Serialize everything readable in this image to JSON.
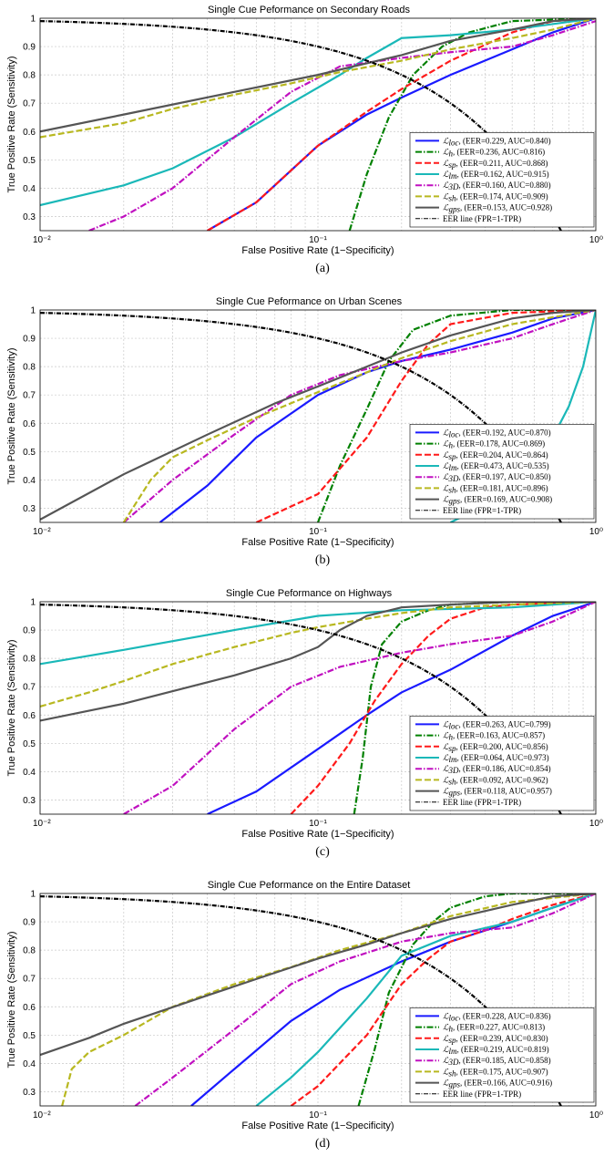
{
  "chart_data": [
    {
      "type": "line",
      "title": "Single Cue Peformance on Secondary Roads",
      "xlabel": "False Positive Rate (1−Specificity)",
      "ylabel": "True Positive Rate (Sensitivity)",
      "xscale": "log",
      "xlim": [
        0.01,
        1
      ],
      "ylim": [
        0.25,
        1
      ],
      "xticks": [
        "10⁻²",
        "10⁻¹",
        "10⁰"
      ],
      "yticks": [
        "0.3",
        "0.4",
        "0.5",
        "0.6",
        "0.7",
        "0.8",
        "0.9",
        "1"
      ],
      "caption": "(a)",
      "grid": true,
      "legend_position": "bottom-right",
      "series": [
        {
          "name": "ℒ_loc",
          "stats": "(EER=0.229, AUC=0.840)",
          "color": "#1a1aff",
          "dash": "solid",
          "x": [
            0.04,
            0.06,
            0.1,
            0.15,
            0.2,
            0.3,
            0.5,
            0.7,
            1.0
          ],
          "y": [
            0.25,
            0.35,
            0.55,
            0.66,
            0.72,
            0.8,
            0.89,
            0.95,
            1.0
          ]
        },
        {
          "name": "ℒ_h",
          "stats": "(EER=0.236, AUC=0.816)",
          "color": "#008000",
          "dash": "dashdot",
          "x": [
            0.13,
            0.15,
            0.18,
            0.22,
            0.28,
            0.35,
            0.5,
            1.0
          ],
          "y": [
            0.25,
            0.45,
            0.65,
            0.8,
            0.9,
            0.95,
            0.99,
            1.0
          ]
        },
        {
          "name": "ℒ_sp",
          "stats": "(EER=0.211, AUC=0.868)",
          "color": "#ff1a1a",
          "dash": "dash",
          "x": [
            0.04,
            0.06,
            0.1,
            0.15,
            0.2,
            0.3,
            0.5,
            0.7,
            1.0
          ],
          "y": [
            0.25,
            0.35,
            0.55,
            0.67,
            0.75,
            0.85,
            0.95,
            0.99,
            1.0
          ]
        },
        {
          "name": "ℒ_lm",
          "stats": "(EER=0.162, AUC=0.915)",
          "color": "#1ab8b8",
          "dash": "solid",
          "x": [
            0.01,
            0.02,
            0.03,
            0.05,
            0.08,
            0.12,
            0.15,
            0.2,
            0.3,
            0.5,
            1.0
          ],
          "y": [
            0.34,
            0.41,
            0.47,
            0.58,
            0.7,
            0.8,
            0.86,
            0.93,
            0.94,
            0.96,
            1.0
          ]
        },
        {
          "name": "ℒ_3D",
          "stats": "(EER=0.160, AUC=0.880)",
          "color": "#c010c0",
          "dash": "dashdot",
          "x": [
            0.015,
            0.02,
            0.03,
            0.05,
            0.08,
            0.12,
            0.2,
            0.3,
            0.5,
            0.7,
            1.0
          ],
          "y": [
            0.25,
            0.3,
            0.4,
            0.58,
            0.74,
            0.83,
            0.86,
            0.88,
            0.9,
            0.94,
            0.99
          ]
        },
        {
          "name": "ℒ_sh",
          "stats": "(EER=0.174, AUC=0.909)",
          "color": "#b8b820",
          "dash": "dash",
          "x": [
            0.01,
            0.02,
            0.03,
            0.05,
            0.08,
            0.12,
            0.2,
            0.3,
            0.5,
            0.7,
            1.0
          ],
          "y": [
            0.58,
            0.63,
            0.68,
            0.73,
            0.77,
            0.81,
            0.85,
            0.89,
            0.93,
            0.96,
            1.0
          ]
        },
        {
          "name": "ℒ_gps",
          "stats": "(EER=0.153, AUC=0.928)",
          "color": "#555555",
          "dash": "solid",
          "x": [
            0.01,
            0.02,
            0.05,
            0.1,
            0.2,
            0.3,
            0.5,
            0.7,
            1.0
          ],
          "y": [
            0.6,
            0.66,
            0.74,
            0.8,
            0.87,
            0.92,
            0.96,
            0.99,
            1.0
          ]
        },
        {
          "name": "EER line (FPR=1-TPR)",
          "stats": "",
          "color": "#000000",
          "dash": "eer",
          "x": [
            0.01,
            1.0
          ],
          "y": [
            0.99,
            0.25
          ]
        }
      ]
    },
    {
      "type": "line",
      "title": "Single Cue Peformance on Urban Scenes",
      "xlabel": "False Positive Rate (1−Specificity)",
      "ylabel": "True Positive Rate (Sensitivity)",
      "xscale": "log",
      "xlim": [
        0.01,
        1
      ],
      "ylim": [
        0.25,
        1
      ],
      "xticks": [
        "10⁻²",
        "10⁻¹",
        "10⁰"
      ],
      "yticks": [
        "0.3",
        "0.4",
        "0.5",
        "0.6",
        "0.7",
        "0.8",
        "0.9",
        "1"
      ],
      "caption": "(b)",
      "grid": true,
      "legend_position": "bottom-right",
      "series": [
        {
          "name": "ℒ_loc",
          "stats": "(EER=0.192, AUC=0.870)",
          "color": "#1a1aff",
          "dash": "solid",
          "x": [
            0.027,
            0.04,
            0.06,
            0.1,
            0.15,
            0.2,
            0.3,
            0.5,
            0.7,
            1.0
          ],
          "y": [
            0.25,
            0.38,
            0.55,
            0.7,
            0.78,
            0.82,
            0.86,
            0.92,
            0.97,
            1.0
          ]
        },
        {
          "name": "ℒ_h",
          "stats": "(EER=0.178, AUC=0.869)",
          "color": "#008000",
          "dash": "dashdot",
          "x": [
            0.1,
            0.12,
            0.15,
            0.18,
            0.22,
            0.3,
            0.5,
            1.0
          ],
          "y": [
            0.25,
            0.45,
            0.65,
            0.82,
            0.93,
            0.98,
            1.0,
            1.0
          ]
        },
        {
          "name": "ℒ_sp",
          "stats": "(EER=0.204, AUC=0.864)",
          "color": "#ff1a1a",
          "dash": "dash",
          "x": [
            0.06,
            0.1,
            0.15,
            0.2,
            0.25,
            0.3,
            0.5,
            1.0
          ],
          "y": [
            0.25,
            0.35,
            0.55,
            0.75,
            0.88,
            0.95,
            0.99,
            1.0
          ]
        },
        {
          "name": "ℒ_lm",
          "stats": "(EER=0.473, AUC=0.535)",
          "color": "#1ab8b8",
          "dash": "solid",
          "x": [
            0.3,
            0.4,
            0.5,
            0.6,
            0.7,
            0.8,
            0.9,
            1.0
          ],
          "y": [
            0.25,
            0.31,
            0.38,
            0.46,
            0.55,
            0.66,
            0.8,
            1.0
          ]
        },
        {
          "name": "ℒ_3D",
          "stats": "(EER=0.197, AUC=0.850)",
          "color": "#c010c0",
          "dash": "dashdot",
          "x": [
            0.02,
            0.03,
            0.05,
            0.08,
            0.12,
            0.2,
            0.3,
            0.5,
            0.7,
            1.0
          ],
          "y": [
            0.25,
            0.4,
            0.56,
            0.7,
            0.77,
            0.82,
            0.85,
            0.9,
            0.95,
            1.0
          ]
        },
        {
          "name": "ℒ_sh",
          "stats": "(EER=0.181, AUC=0.896)",
          "color": "#b8b820",
          "dash": "dash",
          "x": [
            0.02,
            0.025,
            0.03,
            0.04,
            0.06,
            0.1,
            0.15,
            0.2,
            0.3,
            0.5,
            1.0
          ],
          "y": [
            0.25,
            0.4,
            0.48,
            0.54,
            0.62,
            0.71,
            0.78,
            0.83,
            0.89,
            0.95,
            1.0
          ]
        },
        {
          "name": "ℒ_gps",
          "stats": "(EER=0.169, AUC=0.908)",
          "color": "#555555",
          "dash": "solid",
          "x": [
            0.01,
            0.02,
            0.04,
            0.07,
            0.1,
            0.15,
            0.2,
            0.3,
            0.5,
            0.7,
            1.0
          ],
          "y": [
            0.26,
            0.42,
            0.56,
            0.67,
            0.73,
            0.8,
            0.85,
            0.91,
            0.97,
            0.99,
            1.0
          ]
        },
        {
          "name": "EER line (FPR=1-TPR)",
          "stats": "",
          "color": "#000000",
          "dash": "eer",
          "x": [
            0.01,
            1.0
          ],
          "y": [
            0.99,
            0.25
          ]
        }
      ]
    },
    {
      "type": "line",
      "title": "Single Cue Peformance on Highways",
      "xlabel": "False Positive Rate (1−Specificity)",
      "ylabel": "True Positive Rate (Sensitivity)",
      "xscale": "log",
      "xlim": [
        0.01,
        1
      ],
      "ylim": [
        0.25,
        1
      ],
      "xticks": [
        "10⁻²",
        "10⁻¹",
        "10⁰"
      ],
      "yticks": [
        "0.3",
        "0.4",
        "0.5",
        "0.6",
        "0.7",
        "0.8",
        "0.9",
        "1"
      ],
      "caption": "(c)",
      "grid": true,
      "legend_position": "bottom-right",
      "series": [
        {
          "name": "ℒ_loc",
          "stats": "(EER=0.263, AUC=0.799)",
          "color": "#1a1aff",
          "dash": "solid",
          "x": [
            0.04,
            0.06,
            0.1,
            0.15,
            0.2,
            0.3,
            0.5,
            0.7,
            1.0
          ],
          "y": [
            0.25,
            0.33,
            0.48,
            0.6,
            0.68,
            0.76,
            0.88,
            0.95,
            1.0
          ]
        },
        {
          "name": "ℒ_h",
          "stats": "(EER=0.163, AUC=0.857)",
          "color": "#008000",
          "dash": "dashdot",
          "x": [
            0.135,
            0.145,
            0.155,
            0.17,
            0.2,
            0.25,
            0.3,
            0.5,
            1.0
          ],
          "y": [
            0.25,
            0.45,
            0.7,
            0.85,
            0.93,
            0.97,
            0.99,
            1.0,
            1.0
          ]
        },
        {
          "name": "ℒ_sp",
          "stats": "(EER=0.200, AUC=0.856)",
          "color": "#ff1a1a",
          "dash": "dash",
          "x": [
            0.08,
            0.1,
            0.13,
            0.16,
            0.2,
            0.25,
            0.3,
            0.4,
            0.5,
            1.0
          ],
          "y": [
            0.25,
            0.35,
            0.5,
            0.65,
            0.78,
            0.88,
            0.94,
            0.98,
            0.99,
            1.0
          ]
        },
        {
          "name": "ℒ_lm",
          "stats": "(EER=0.064, AUC=0.973)",
          "color": "#1ab8b8",
          "dash": "solid",
          "x": [
            0.01,
            0.02,
            0.05,
            0.1,
            0.2,
            0.5,
            1.0
          ],
          "y": [
            0.78,
            0.83,
            0.9,
            0.95,
            0.97,
            0.98,
            1.0
          ]
        },
        {
          "name": "ℒ_3D",
          "stats": "(EER=0.186, AUC=0.854)",
          "color": "#c010c0",
          "dash": "dashdot",
          "x": [
            0.02,
            0.03,
            0.05,
            0.08,
            0.12,
            0.2,
            0.3,
            0.5,
            0.7,
            1.0
          ],
          "y": [
            0.25,
            0.35,
            0.55,
            0.7,
            0.77,
            0.82,
            0.85,
            0.88,
            0.93,
            1.0
          ]
        },
        {
          "name": "ℒ_sh",
          "stats": "(EER=0.092, AUC=0.962)",
          "color": "#b8b820",
          "dash": "dash",
          "x": [
            0.01,
            0.015,
            0.02,
            0.03,
            0.05,
            0.08,
            0.1,
            0.15,
            0.2,
            0.3,
            0.5,
            1.0
          ],
          "y": [
            0.63,
            0.68,
            0.72,
            0.78,
            0.84,
            0.89,
            0.91,
            0.94,
            0.96,
            0.98,
            0.99,
            1.0
          ]
        },
        {
          "name": "ℒ_gps",
          "stats": "(EER=0.118, AUC=0.957)",
          "color": "#555555",
          "dash": "solid",
          "x": [
            0.01,
            0.02,
            0.05,
            0.08,
            0.1,
            0.12,
            0.15,
            0.2,
            0.3,
            0.5,
            1.0
          ],
          "y": [
            0.58,
            0.64,
            0.74,
            0.8,
            0.84,
            0.9,
            0.95,
            0.98,
            0.99,
            1.0,
            1.0
          ]
        },
        {
          "name": "EER line (FPR=1-TPR)",
          "stats": "",
          "color": "#000000",
          "dash": "eer",
          "x": [
            0.01,
            1.0
          ],
          "y": [
            0.99,
            0.25
          ]
        }
      ]
    },
    {
      "type": "line",
      "title": "Single Cue Peformance on the Entire Dataset",
      "xlabel": "False Positive Rate (1−Specificity)",
      "ylabel": "True Positive Rate (Sensitivity)",
      "xscale": "log",
      "xlim": [
        0.01,
        1
      ],
      "ylim": [
        0.25,
        1
      ],
      "xticks": [
        "10⁻²",
        "10⁻¹",
        "10⁰"
      ],
      "yticks": [
        "0.3",
        "0.4",
        "0.5",
        "0.6",
        "0.7",
        "0.8",
        "0.9",
        "1"
      ],
      "caption": "(d)",
      "grid": true,
      "legend_position": "bottom-right",
      "series": [
        {
          "name": "ℒ_loc",
          "stats": "(EER=0.228, AUC=0.836)",
          "color": "#1a1aff",
          "dash": "solid",
          "x": [
            0.035,
            0.05,
            0.08,
            0.12,
            0.2,
            0.3,
            0.5,
            0.7,
            1.0
          ],
          "y": [
            0.25,
            0.38,
            0.55,
            0.66,
            0.76,
            0.83,
            0.9,
            0.95,
            1.0
          ]
        },
        {
          "name": "ℒ_h",
          "stats": "(EER=0.227, AUC=0.813)",
          "color": "#008000",
          "dash": "dashdot",
          "x": [
            0.14,
            0.16,
            0.18,
            0.22,
            0.26,
            0.3,
            0.4,
            0.5,
            1.0
          ],
          "y": [
            0.25,
            0.45,
            0.65,
            0.82,
            0.9,
            0.95,
            0.99,
            1.0,
            1.0
          ]
        },
        {
          "name": "ℒ_sp",
          "stats": "(EER=0.239, AUC=0.830)",
          "color": "#ff1a1a",
          "dash": "dash",
          "x": [
            0.08,
            0.1,
            0.15,
            0.2,
            0.25,
            0.3,
            0.4,
            0.5,
            0.7,
            1.0
          ],
          "y": [
            0.25,
            0.32,
            0.5,
            0.68,
            0.77,
            0.83,
            0.87,
            0.91,
            0.96,
            1.0
          ]
        },
        {
          "name": "ℒ_lm",
          "stats": "(EER=0.219, AUC=0.819)",
          "color": "#1ab8b8",
          "dash": "solid",
          "x": [
            0.06,
            0.08,
            0.1,
            0.15,
            0.2,
            0.3,
            0.5,
            0.7,
            1.0
          ],
          "y": [
            0.25,
            0.35,
            0.44,
            0.63,
            0.78,
            0.85,
            0.9,
            0.95,
            1.0
          ]
        },
        {
          "name": "ℒ_3D",
          "stats": "(EER=0.185, AUC=0.858)",
          "color": "#c010c0",
          "dash": "dashdot",
          "x": [
            0.022,
            0.03,
            0.05,
            0.08,
            0.12,
            0.2,
            0.3,
            0.5,
            0.7,
            1.0
          ],
          "y": [
            0.25,
            0.35,
            0.52,
            0.68,
            0.76,
            0.83,
            0.86,
            0.88,
            0.93,
            1.0
          ]
        },
        {
          "name": "ℒ_sh",
          "stats": "(EER=0.175, AUC=0.907)",
          "color": "#b8b820",
          "dash": "dash",
          "x": [
            0.012,
            0.013,
            0.015,
            0.02,
            0.03,
            0.05,
            0.08,
            0.12,
            0.2,
            0.3,
            0.5,
            1.0
          ],
          "y": [
            0.25,
            0.38,
            0.44,
            0.5,
            0.6,
            0.68,
            0.74,
            0.8,
            0.86,
            0.92,
            0.97,
            1.0
          ]
        },
        {
          "name": "ℒ_gps",
          "stats": "(EER=0.166, AUC=0.916)",
          "color": "#555555",
          "dash": "solid",
          "x": [
            0.01,
            0.015,
            0.02,
            0.04,
            0.07,
            0.1,
            0.15,
            0.2,
            0.3,
            0.5,
            0.7,
            1.0
          ],
          "y": [
            0.43,
            0.49,
            0.54,
            0.64,
            0.72,
            0.77,
            0.82,
            0.86,
            0.91,
            0.96,
            0.99,
            1.0
          ]
        },
        {
          "name": "EER line (FPR=1-TPR)",
          "stats": "",
          "color": "#000000",
          "dash": "eer",
          "x": [
            0.01,
            1.0
          ],
          "y": [
            0.99,
            0.25
          ]
        }
      ]
    }
  ]
}
